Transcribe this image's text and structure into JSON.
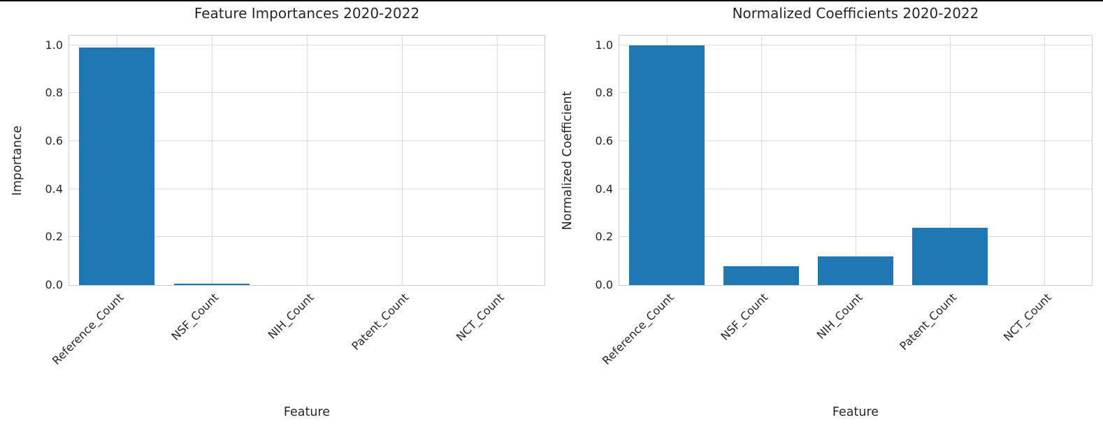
{
  "page": {
    "background_color": "#ffffff",
    "top_border_color": "#000000"
  },
  "style": {
    "bar_color": "#1f77b4",
    "grid_color": "#d9d9d9",
    "axes_edge_color": "#cccccc",
    "text_color": "#262626",
    "grid": true
  },
  "chart_data": [
    {
      "type": "bar",
      "title": "Feature Importances 2020-2022",
      "xlabel": "Feature",
      "ylabel": "Importance",
      "categories": [
        "Reference_Count",
        "NSF_Count",
        "NIH_Count",
        "Patent_Count",
        "NCT_Count"
      ],
      "values": [
        0.99,
        0.007,
        0.0,
        0.0,
        0.0
      ],
      "yticks": [
        0.0,
        0.2,
        0.4,
        0.6,
        0.8,
        1.0
      ],
      "ytick_labels": [
        "0.0",
        "0.2",
        "0.4",
        "0.6",
        "0.8",
        "1.0"
      ],
      "ylim": [
        0,
        1.04
      ],
      "bar_color": "#1f77b4",
      "legend": "none",
      "x_tick_rotation_deg": 45
    },
    {
      "type": "bar",
      "title": "Normalized Coefficients 2020-2022",
      "xlabel": "Feature",
      "ylabel": "Normalized Coefficient",
      "categories": [
        "Reference_Count",
        "NSF_Count",
        "NIH_Count",
        "Patent_Count",
        "NCT_Count"
      ],
      "values": [
        1.0,
        0.08,
        0.12,
        0.24,
        0.0
      ],
      "yticks": [
        0.0,
        0.2,
        0.4,
        0.6,
        0.8,
        1.0
      ],
      "ytick_labels": [
        "0.0",
        "0.2",
        "0.4",
        "0.6",
        "0.8",
        "1.0"
      ],
      "ylim": [
        0,
        1.04
      ],
      "bar_color": "#1f77b4",
      "legend": "none",
      "x_tick_rotation_deg": 45
    }
  ]
}
